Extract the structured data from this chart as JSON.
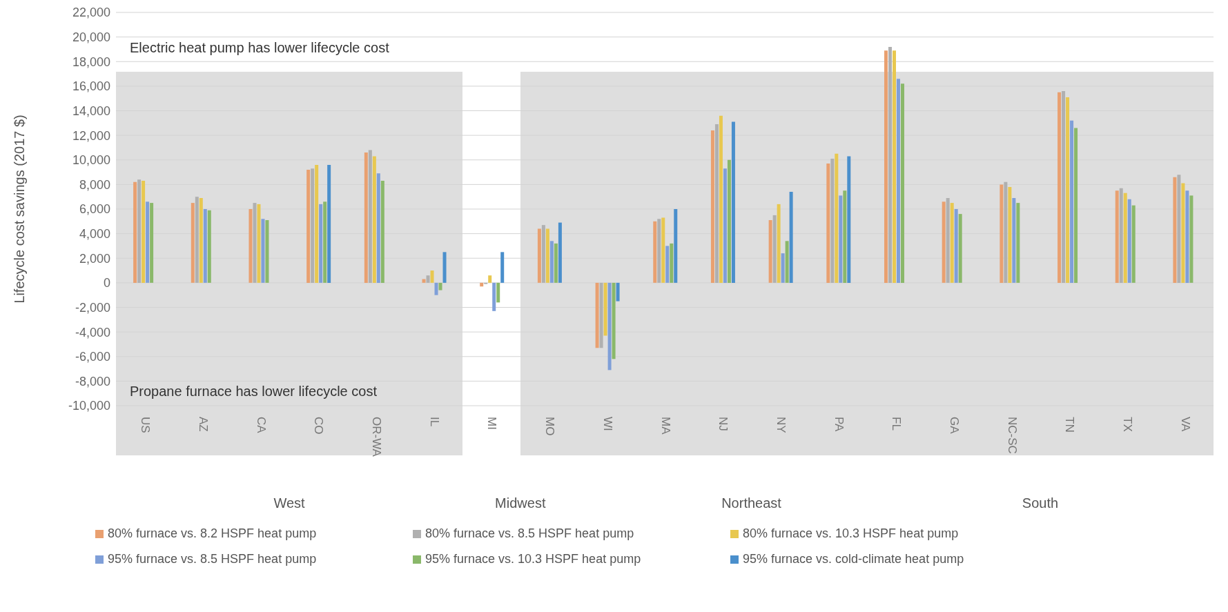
{
  "chart_data": {
    "type": "bar",
    "ylabel": "Lifecycle cost savings (2017 $)",
    "categories": [
      "US",
      "AZ",
      "CA",
      "CO",
      "OR-WA",
      "IL",
      "MI",
      "MO",
      "WI",
      "MA",
      "NJ",
      "NY",
      "PA",
      "FL",
      "GA",
      "NC-SC",
      "TN",
      "TX",
      "VA"
    ],
    "series": [
      {
        "name": "80% furnace vs. 8.2 HSPF heat pump",
        "color": "#e9a070",
        "values": [
          8200,
          6500,
          6000,
          9200,
          10600,
          300,
          -300,
          4400,
          -5300,
          5000,
          12400,
          5100,
          9700,
          18900,
          6600,
          8000,
          15500,
          7500,
          8600
        ]
      },
      {
        "name": "80% furnace vs. 8.5 HSPF heat pump",
        "color": "#b0b0b0",
        "values": [
          8400,
          7000,
          6500,
          9300,
          10800,
          600,
          -100,
          4700,
          -5300,
          5200,
          12900,
          5500,
          10100,
          19200,
          6900,
          8200,
          15600,
          7700,
          8800
        ]
      },
      {
        "name": "80% furnace vs. 10.3 HSPF heat pump",
        "color": "#e8c850",
        "values": [
          8300,
          6900,
          6400,
          9600,
          10300,
          1000,
          600,
          4400,
          -4300,
          5300,
          13600,
          6400,
          10500,
          18900,
          6500,
          7800,
          15100,
          7300,
          8100
        ]
      },
      {
        "name": "95% furnace vs. 8.5 HSPF heat pump",
        "color": "#7f9fd8",
        "values": [
          6600,
          6000,
          5200,
          6400,
          8900,
          -1000,
          -2300,
          3400,
          -7100,
          3000,
          9300,
          2400,
          7100,
          16600,
          6000,
          6900,
          13200,
          6800,
          7500
        ]
      },
      {
        "name": "95% furnace vs. 10.3 HSPF heat pump",
        "color": "#8ab86a",
        "values": [
          6500,
          5900,
          5100,
          6600,
          8300,
          -600,
          -1600,
          3200,
          -6200,
          3200,
          10000,
          3400,
          7500,
          16200,
          5600,
          6500,
          12600,
          6300,
          7100
        ]
      },
      {
        "name": "95% furnace vs. cold-climate heat pump",
        "color": "#4a8fcc",
        "values": [
          null,
          null,
          null,
          9600,
          null,
          2500,
          2500,
          4900,
          -1500,
          6000,
          13100,
          7400,
          10300,
          null,
          null,
          null,
          null,
          null,
          null
        ]
      }
    ],
    "ylim": [
      -10000,
      22000
    ],
    "yticks": [
      {
        "value": -10000,
        "label": "-10,000"
      },
      {
        "value": -8000,
        "label": "-8,000"
      },
      {
        "value": -6000,
        "label": "-6,000"
      },
      {
        "value": -4000,
        "label": "-4,000"
      },
      {
        "value": -2000,
        "label": "-2,000"
      },
      0,
      {
        "value": 2000,
        "label": "2,000"
      },
      {
        "value": 4000,
        "label": "4,000"
      },
      {
        "value": 6000,
        "label": "6,000"
      },
      {
        "value": 8000,
        "label": "8,000"
      },
      {
        "value": 10000,
        "label": "10,000"
      },
      {
        "value": 12000,
        "label": "12,000"
      },
      {
        "value": 14000,
        "label": "14,000"
      },
      {
        "value": 16000,
        "label": "16,000"
      },
      {
        "value": 18000,
        "label": "18,000"
      },
      {
        "value": 20000,
        "label": "20,000"
      },
      {
        "value": 22000,
        "label": "22,000"
      }
    ],
    "grid": "y",
    "legend": "bottom",
    "bands": [
      {
        "axis": "x",
        "from": "US",
        "to": "IL",
        "color": "#dedede"
      },
      {
        "axis": "x",
        "from": "MO",
        "to": "VA",
        "color": "#dedede"
      }
    ],
    "annotations": [
      "Electric heat pump has lower lifecycle cost",
      "Propane furnace has lower lifecycle cost",
      "West",
      "Midwest",
      "Northeast",
      "South"
    ]
  }
}
